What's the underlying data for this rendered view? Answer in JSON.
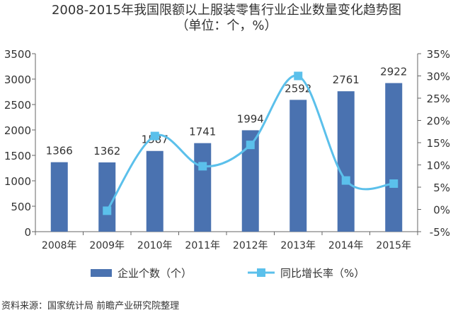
{
  "chart_data": {
    "type": "bar",
    "title": "2008-2015年我国限额以上服装零售行业企业数量变化趋势图",
    "subtitle": "（单位：个，%）",
    "categories": [
      "2008年",
      "2009年",
      "2010年",
      "2011年",
      "2012年",
      "2013年",
      "2014年",
      "2015年"
    ],
    "series": [
      {
        "name": "企业个数（个）",
        "type": "bar",
        "axis": "left",
        "values": [
          1366,
          1362,
          1587,
          1741,
          1994,
          2592,
          2761,
          2922
        ],
        "color": "#4a72b0"
      },
      {
        "name": "同比增长率（%）",
        "type": "line",
        "axis": "right",
        "smooth": true,
        "marker": "square",
        "values": [
          null,
          -0.3,
          16.5,
          9.7,
          14.5,
          30.0,
          6.5,
          5.8
        ],
        "color": "#5bc0eb"
      }
    ],
    "y_left": {
      "lim": [
        0,
        3500
      ],
      "ticks": [
        0,
        500,
        1000,
        1500,
        2000,
        2500,
        3000,
        3500
      ],
      "tick_labels": [
        "0",
        "500",
        "1000",
        "1500",
        "2000",
        "2500",
        "3000",
        "3500"
      ]
    },
    "y_right": {
      "lim": [
        -5,
        35
      ],
      "ticks": [
        -5,
        0,
        5,
        10,
        15,
        20,
        25,
        30,
        35
      ],
      "tick_labels": [
        "-5%",
        "0%",
        "5%",
        "10%",
        "15%",
        "20%",
        "25%",
        "30%",
        "35%"
      ]
    },
    "data_labels": [
      "1366",
      "1362",
      "1587",
      "1741",
      "1994",
      "2592",
      "2761",
      "2922"
    ],
    "grid": false,
    "legend_position": "bottom",
    "source": "资料来源：国家统计局 前瞻产业研究院整理"
  }
}
